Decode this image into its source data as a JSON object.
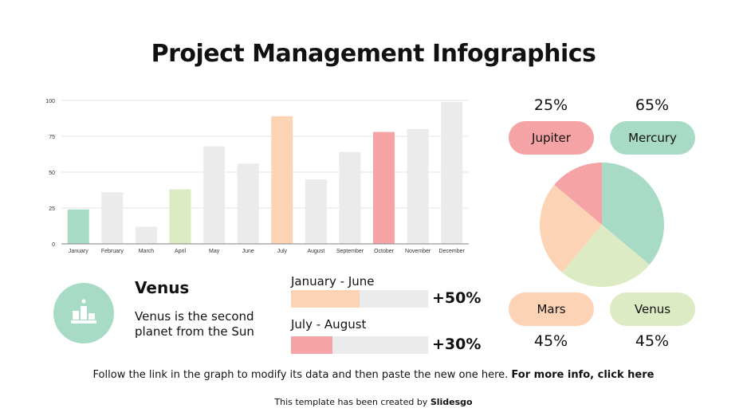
{
  "title": "Project Management Infographics",
  "chart_data": {
    "type": "bar",
    "categories": [
      "January",
      "February",
      "March",
      "April",
      "May",
      "June",
      "July",
      "August",
      "September",
      "October",
      "November",
      "December"
    ],
    "values": [
      24,
      36,
      12,
      38,
      68,
      56,
      89,
      45,
      64,
      78,
      80,
      99
    ],
    "colors": [
      "#a8dbc6",
      "#ebebeb",
      "#ebebeb",
      "#dcebc3",
      "#ebebeb",
      "#ebebeb",
      "#fdd3b5",
      "#ebebeb",
      "#ebebeb",
      "#f5a3a5",
      "#ebebeb",
      "#ebebeb"
    ],
    "ylim": [
      0,
      100
    ],
    "yticks": [
      0,
      25,
      50,
      75,
      100
    ],
    "grid": true
  },
  "pie": {
    "type": "pie",
    "slices": [
      {
        "name": "Mercury",
        "value": 65,
        "label": "65%",
        "color": "#a8dbc6"
      },
      {
        "name": "Venus",
        "value": 45,
        "label": "45%",
        "color": "#dcebc3"
      },
      {
        "name": "Mars",
        "value": 45,
        "label": "45%",
        "color": "#fdd3b5"
      },
      {
        "name": "Jupiter",
        "value": 25,
        "label": "25%",
        "color": "#f5a3a5"
      }
    ]
  },
  "venus": {
    "icon": "podium-icon",
    "heading": "Venus",
    "text": "Venus is the second planet from the Sun",
    "color": "#a8dbc6"
  },
  "progress": [
    {
      "label": "January - June",
      "percent": 50,
      "delta": "+50%",
      "color": "#fdd3b5"
    },
    {
      "label": "July - August",
      "percent": 30,
      "delta": "+30%",
      "color": "#f5a3a5"
    }
  ],
  "footer": {
    "text": "Follow the link in the graph to modify its data and then paste the new one here. ",
    "bold": "For more info, ",
    "link": "click here"
  },
  "credit": {
    "text": "This template has been created by ",
    "link": "Slidesgo"
  }
}
